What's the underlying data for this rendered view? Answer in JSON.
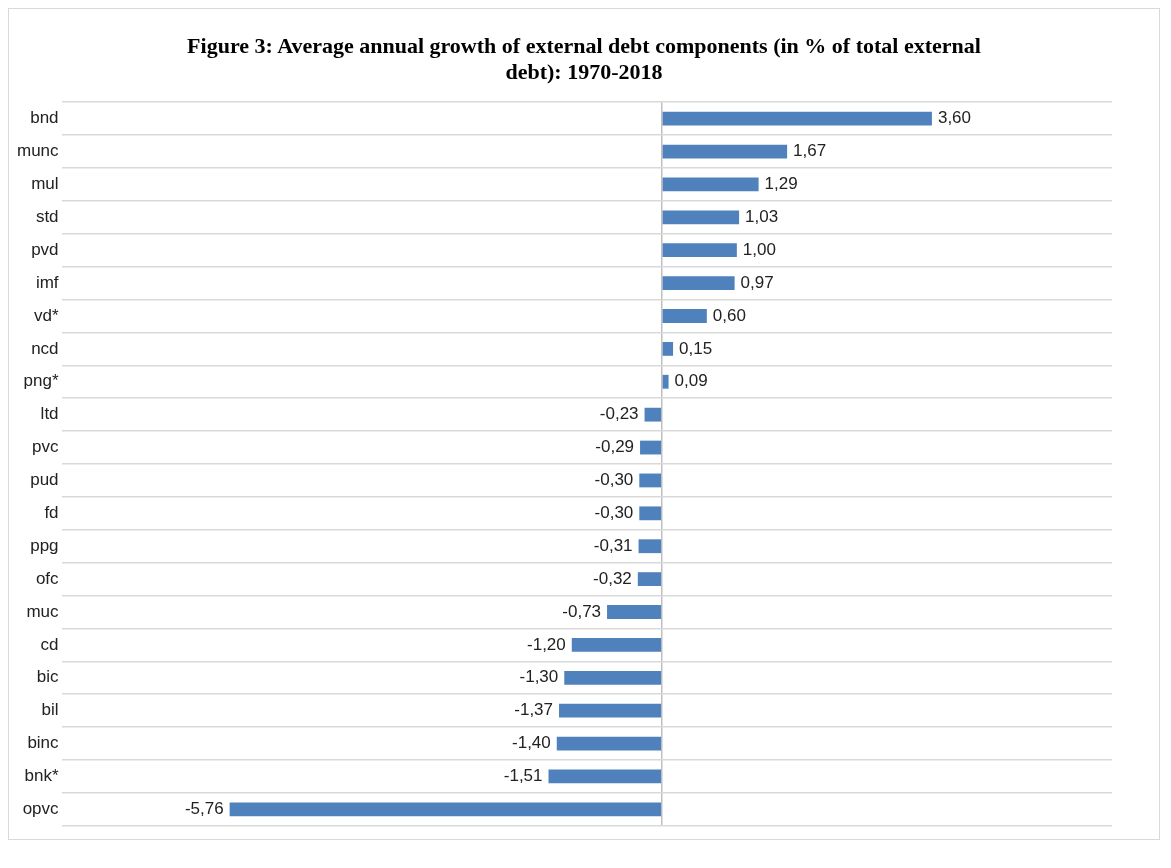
{
  "chart_data": {
    "type": "bar",
    "orientation": "horizontal",
    "title": "Figure 3: Average annual growth of external debt components (in % of total external debt): 1970-2018",
    "categories": [
      "bnd",
      "munc",
      "mul",
      "std",
      "pvd",
      "imf",
      "vd*",
      "ncd",
      "png*",
      "ltd",
      "pvc",
      "pud",
      "fd",
      "ppg",
      "ofc",
      "muc",
      "cd",
      "bic",
      "bil",
      "binc",
      "bnk*",
      "opvc"
    ],
    "values": [
      3.6,
      1.67,
      1.29,
      1.03,
      1.0,
      0.97,
      0.6,
      0.15,
      0.09,
      -0.23,
      -0.29,
      -0.3,
      -0.3,
      -0.31,
      -0.32,
      -0.73,
      -1.2,
      -1.3,
      -1.37,
      -1.4,
      -1.51,
      -5.76
    ],
    "value_labels": [
      "3,60",
      "1,67",
      "1,29",
      "1,03",
      "1,00",
      "0,97",
      "0,60",
      "0,15",
      "0,09",
      "-0,23",
      "-0,29",
      "-0,30",
      "-0,30",
      "-0,31",
      "-0,32",
      "-0,73",
      "-1,20",
      "-1,30",
      "-1,37",
      "-1,40",
      "-1,51",
      "-5,76"
    ],
    "color": "#4f81bd",
    "grid": "y",
    "tick_labels": "y",
    "legend": false
  }
}
